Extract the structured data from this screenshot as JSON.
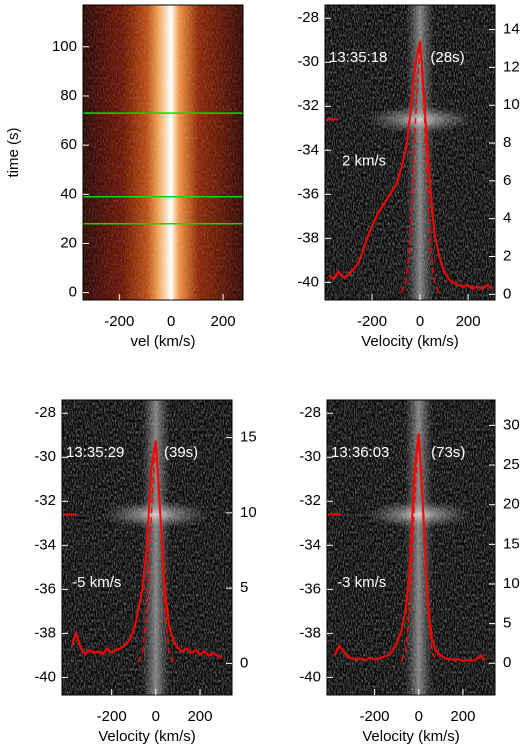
{
  "chart_data": [
    {
      "type": "heatmap",
      "xlabel": "vel (km/s)",
      "ylabel": "time (s)",
      "xlim": [
        -340,
        277
      ],
      "ylim": [
        -3,
        117
      ],
      "xticks": [
        -200,
        0,
        200
      ],
      "yticks": [
        0,
        20,
        40,
        60,
        80,
        100
      ],
      "hlines": [
        28,
        39,
        73
      ],
      "hline_color": "#00e000"
    },
    {
      "type": "line",
      "xlabel": "Velocity (km/s)",
      "annotations": [
        "13:35:18",
        "(28s)",
        "2 km/s"
      ],
      "xlim": [
        -396,
        312
      ],
      "ylim": [
        -40.8,
        -27.4
      ],
      "y2lim": [
        -0.3,
        15.3
      ],
      "xticks": [
        -200,
        0,
        200
      ],
      "yticks": [
        -40,
        -38,
        -36,
        -34,
        -32,
        -30,
        -28
      ],
      "y2ticks": [
        0,
        2,
        4,
        6,
        8,
        10,
        12,
        14
      ],
      "slit_position": -32.6,
      "series": [
        {
          "color": "#ff0000",
          "axis": "y2",
          "x": [
            -380,
            -360,
            -340,
            -320,
            -300,
            -280,
            -260,
            -240,
            -220,
            -200,
            -180,
            -160,
            -140,
            -120,
            -100,
            -80,
            -60,
            -40,
            -20,
            0,
            20,
            40,
            60,
            80,
            100,
            120,
            140,
            160,
            180,
            200,
            220,
            240,
            260,
            280,
            300
          ],
          "values": [
            1.0,
            0.8,
            1.2,
            0.9,
            1.0,
            1.3,
            1.6,
            2.2,
            3.0,
            3.6,
            4.2,
            4.6,
            5.0,
            5.4,
            5.8,
            6.6,
            7.6,
            9.6,
            12.2,
            13.4,
            9.8,
            6.0,
            3.2,
            2.0,
            1.2,
            0.8,
            0.6,
            0.5,
            0.4,
            0.5,
            0.3,
            0.4,
            0.3,
            0.5,
            0.3
          ]
        },
        {
          "color": "#ff0000",
          "axis": "y2",
          "style": "dashed",
          "x": [
            -80,
            -60,
            -40,
            -20,
            0,
            20,
            40,
            60,
            80
          ],
          "values": [
            0.1,
            0.6,
            3,
            9,
            13.4,
            9,
            3,
            0.6,
            0.1
          ]
        }
      ]
    },
    {
      "type": "line",
      "xlabel": "Velocity (km/s)",
      "annotations": [
        "13:35:29",
        "(39s)",
        "-5 km/s"
      ],
      "xlim": [
        -425,
        345
      ],
      "ylim": [
        -40.8,
        -27.4
      ],
      "y2lim": [
        -2.1,
        17.5
      ],
      "xticks": [
        -200,
        0,
        200
      ],
      "yticks": [
        -40,
        -38,
        -36,
        -34,
        -32,
        -30,
        -28
      ],
      "y2ticks": [
        0,
        5,
        10,
        15
      ],
      "slit_position": -32.6,
      "series": [
        {
          "color": "#ff0000",
          "axis": "y2",
          "x": [
            -380,
            -360,
            -340,
            -320,
            -300,
            -280,
            -260,
            -240,
            -220,
            -200,
            -180,
            -160,
            -140,
            -120,
            -100,
            -80,
            -60,
            -40,
            -20,
            0,
            20,
            40,
            60,
            80,
            100,
            120,
            140,
            160,
            180,
            200,
            220,
            240,
            260,
            280,
            300
          ],
          "values": [
            1.2,
            2.0,
            1.0,
            0.6,
            0.9,
            0.7,
            0.8,
            0.6,
            1.0,
            0.7,
            0.9,
            1.0,
            1.2,
            1.5,
            2.2,
            3.5,
            5.0,
            8.0,
            13.0,
            14.8,
            10.0,
            5.0,
            2.5,
            1.5,
            1.0,
            0.8,
            1.0,
            0.7,
            0.9,
            0.6,
            0.8,
            0.5,
            0.7,
            0.5,
            0.4
          ]
        },
        {
          "color": "#ff0000",
          "axis": "y2",
          "style": "dashed",
          "x": [
            -80,
            -60,
            -40,
            -20,
            0,
            20,
            40,
            60,
            80
          ],
          "values": [
            0.1,
            0.7,
            3.5,
            10,
            14.8,
            10,
            3.5,
            0.7,
            0.1
          ]
        }
      ]
    },
    {
      "type": "line",
      "xlabel": "Velocity (km/s)",
      "annotations": [
        "13:36:03",
        "(73s)",
        "-3 km/s"
      ],
      "xlim": [
        -415,
        345
      ],
      "ylim": [
        -40.8,
        -27.4
      ],
      "y2lim": [
        -4,
        33.2
      ],
      "xticks": [
        -200,
        0,
        200
      ],
      "yticks": [
        -40,
        -38,
        -36,
        -34,
        -32,
        -30,
        -28
      ],
      "y2ticks": [
        0,
        5,
        10,
        15,
        20,
        25,
        30
      ],
      "slit_position": -32.6,
      "series": [
        {
          "color": "#ff0000",
          "axis": "y2",
          "x": [
            -380,
            -360,
            -340,
            -320,
            -300,
            -280,
            -260,
            -240,
            -220,
            -200,
            -180,
            -160,
            -140,
            -120,
            -100,
            -80,
            -60,
            -40,
            -20,
            0,
            20,
            40,
            60,
            80,
            100,
            120,
            140,
            160,
            180,
            200,
            220,
            240,
            260,
            280,
            300
          ],
          "values": [
            1.0,
            2.2,
            1.5,
            0.8,
            0.6,
            0.5,
            0.6,
            0.4,
            0.7,
            0.5,
            0.6,
            0.8,
            1.0,
            1.5,
            2.5,
            4.0,
            6.5,
            12.0,
            24.0,
            29.0,
            19.0,
            8.0,
            3.0,
            1.5,
            1.0,
            0.6,
            0.5,
            0.4,
            0.5,
            0.3,
            0.4,
            0.3,
            0.5,
            1.0,
            0.4
          ]
        },
        {
          "color": "#ff0000",
          "axis": "y2",
          "style": "dashed",
          "x": [
            -80,
            -60,
            -40,
            -20,
            0,
            20,
            40,
            60,
            80
          ],
          "values": [
            0.2,
            1.4,
            7,
            20,
            29,
            20,
            7,
            1.4,
            0.2
          ]
        }
      ]
    }
  ]
}
